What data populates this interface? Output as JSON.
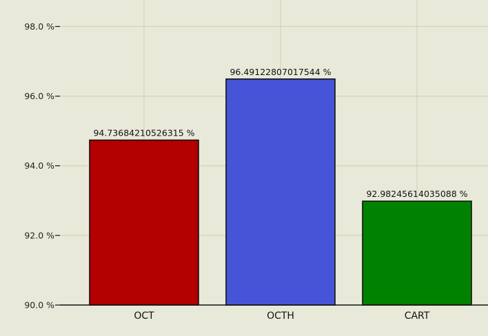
{
  "chart_data": {
    "type": "bar",
    "title": "",
    "xlabel": "",
    "ylabel": "",
    "categories": [
      "OCT",
      "OCTH",
      "CART"
    ],
    "values": [
      94.73684210526315,
      96.49122807017544,
      92.98245614035088
    ],
    "value_labels": [
      "94.73684210526315 %",
      "96.49122807017544 %",
      "92.98245614035088 %"
    ],
    "colors": [
      "#b30000",
      "#4655d8",
      "#008200"
    ],
    "ylim": [
      90,
      98.8
    ],
    "yticks": [
      90,
      92,
      94,
      96,
      98
    ],
    "ytick_labels": [
      "90.0 %",
      "92.0 %",
      "94.0 %",
      "96.0 %",
      "98.0 %"
    ],
    "grid": true,
    "legend": "none"
  },
  "style": {
    "background": "#e9e9da",
    "grid_color": "#d3d3b8",
    "edge_color": "#111111"
  }
}
